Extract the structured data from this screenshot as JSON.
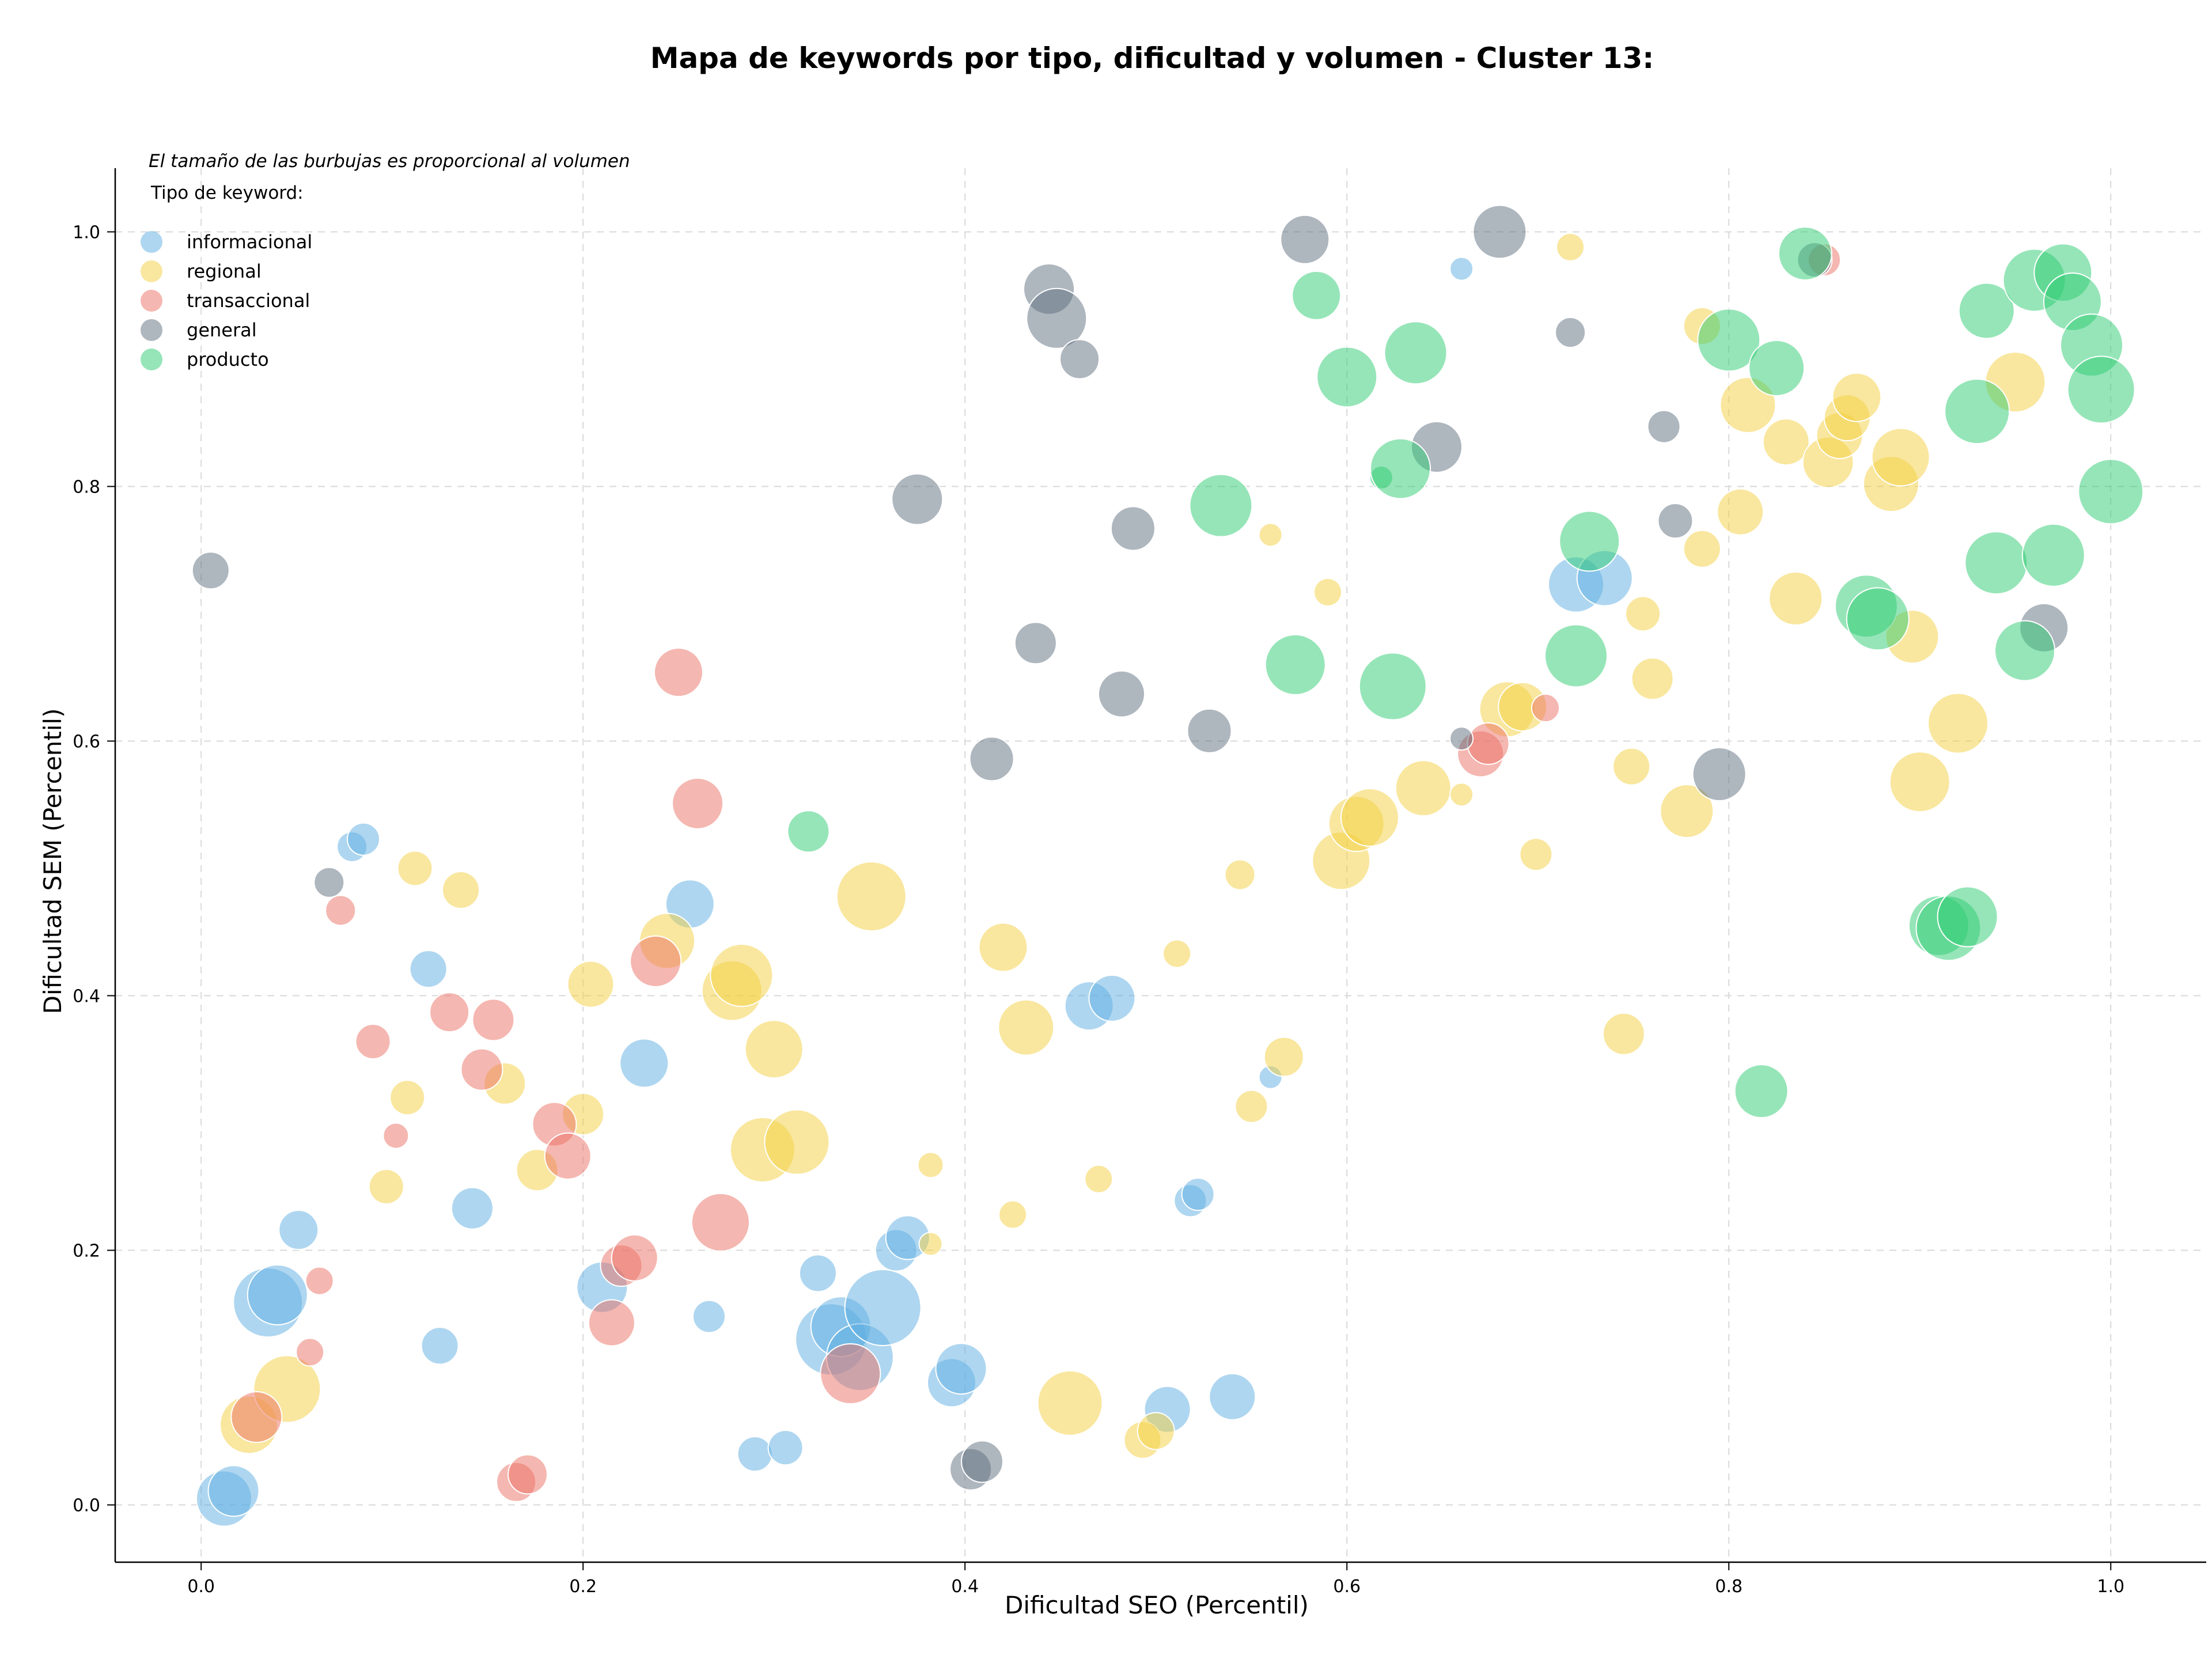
{
  "chart_data": {
    "type": "scatter",
    "title": "Mapa de keywords por tipo, dificultad y volumen - Cluster 13:",
    "xlabel": "Dificultad SEO (Percentil)",
    "ylabel": "Dificultad SEM (Percentil)",
    "xlim": [
      -0.045,
      1.05
    ],
    "ylim": [
      -0.045,
      1.05
    ],
    "xticks": [
      "0.0",
      "0.2",
      "0.4",
      "0.6",
      "0.8",
      "1.0"
    ],
    "yticks": [
      "0.0",
      "0.2",
      "0.4",
      "0.6",
      "0.8",
      "1.0"
    ],
    "grid": true,
    "size_note": "El tamaño de las burbujas es proporcional al volumen",
    "legend_title": "Tipo de keyword:",
    "legend_position": "top-left",
    "series": [
      {
        "name": "informacional",
        "color": "#5DADE2",
        "points": [
          [
            0.012,
            0.005,
            2.4
          ],
          [
            0.017,
            0.011,
            2.2
          ],
          [
            0.035,
            0.159,
            3.0
          ],
          [
            0.04,
            0.165,
            2.6
          ],
          [
            0.051,
            0.216,
            1.7
          ],
          [
            0.079,
            0.517,
            1.3
          ],
          [
            0.085,
            0.523,
            1.4
          ],
          [
            0.119,
            0.421,
            1.6
          ],
          [
            0.125,
            0.125,
            1.6
          ],
          [
            0.142,
            0.233,
            1.8
          ],
          [
            0.21,
            0.171,
            2.2
          ],
          [
            0.232,
            0.347,
            2.1
          ],
          [
            0.256,
            0.472,
            2.1
          ],
          [
            0.266,
            0.148,
            1.4
          ],
          [
            0.29,
            0.04,
            1.5
          ],
          [
            0.306,
            0.045,
            1.5
          ],
          [
            0.323,
            0.182,
            1.6
          ],
          [
            0.33,
            0.13,
            3.1
          ],
          [
            0.335,
            0.14,
            2.6
          ],
          [
            0.345,
            0.116,
            2.9
          ],
          [
            0.357,
            0.155,
            3.3
          ],
          [
            0.364,
            0.2,
            1.8
          ],
          [
            0.37,
            0.21,
            1.9
          ],
          [
            0.393,
            0.096,
            2.1
          ],
          [
            0.398,
            0.107,
            2.2
          ],
          [
            0.465,
            0.392,
            2.1
          ],
          [
            0.477,
            0.398,
            2.0
          ],
          [
            0.506,
            0.075,
            2.0
          ],
          [
            0.518,
            0.239,
            1.4
          ],
          [
            0.522,
            0.244,
            1.4
          ],
          [
            0.54,
            0.085,
            2.0
          ],
          [
            0.56,
            0.336,
            1.0
          ],
          [
            0.66,
            0.971,
            1.0
          ],
          [
            0.72,
            0.723,
            2.4
          ],
          [
            0.735,
            0.728,
            2.4
          ]
        ]
      },
      {
        "name": "regional",
        "color": "#F4D03F",
        "points": [
          [
            0.025,
            0.063,
            2.5
          ],
          [
            0.045,
            0.091,
            2.9
          ],
          [
            0.097,
            0.25,
            1.5
          ],
          [
            0.108,
            0.32,
            1.5
          ],
          [
            0.112,
            0.5,
            1.5
          ],
          [
            0.136,
            0.483,
            1.6
          ],
          [
            0.159,
            0.331,
            1.8
          ],
          [
            0.176,
            0.263,
            1.8
          ],
          [
            0.2,
            0.307,
            1.8
          ],
          [
            0.204,
            0.409,
            2.0
          ],
          [
            0.244,
            0.443,
            2.4
          ],
          [
            0.278,
            0.404,
            2.6
          ],
          [
            0.283,
            0.416,
            2.7
          ],
          [
            0.294,
            0.279,
            2.8
          ],
          [
            0.3,
            0.358,
            2.5
          ],
          [
            0.312,
            0.285,
            2.8
          ],
          [
            0.351,
            0.478,
            3.0
          ],
          [
            0.382,
            0.267,
            1.1
          ],
          [
            0.382,
            0.205,
            1.0
          ],
          [
            0.42,
            0.438,
            2.1
          ],
          [
            0.425,
            0.228,
            1.2
          ],
          [
            0.432,
            0.375,
            2.4
          ],
          [
            0.455,
            0.08,
            2.8
          ],
          [
            0.47,
            0.256,
            1.2
          ],
          [
            0.493,
            0.051,
            1.6
          ],
          [
            0.5,
            0.058,
            1.6
          ],
          [
            0.511,
            0.433,
            1.2
          ],
          [
            0.544,
            0.495,
            1.3
          ],
          [
            0.55,
            0.313,
            1.4
          ],
          [
            0.56,
            0.762,
            1.0
          ],
          [
            0.567,
            0.352,
            1.7
          ],
          [
            0.59,
            0.717,
            1.2
          ],
          [
            0.597,
            0.506,
            2.5
          ],
          [
            0.605,
            0.535,
            2.4
          ],
          [
            0.612,
            0.54,
            2.5
          ],
          [
            0.64,
            0.563,
            2.4
          ],
          [
            0.66,
            0.558,
            1.0
          ],
          [
            0.684,
            0.625,
            2.4
          ],
          [
            0.692,
            0.627,
            2.1
          ],
          [
            0.699,
            0.511,
            1.4
          ],
          [
            0.717,
            0.988,
            1.2
          ],
          [
            0.745,
            0.37,
            1.8
          ],
          [
            0.749,
            0.58,
            1.6
          ],
          [
            0.755,
            0.7,
            1.5
          ],
          [
            0.76,
            0.649,
            1.8
          ],
          [
            0.778,
            0.545,
            2.3
          ],
          [
            0.786,
            0.751,
            1.6
          ],
          [
            0.786,
            0.926,
            1.6
          ],
          [
            0.806,
            0.78,
            2.0
          ],
          [
            0.81,
            0.864,
            2.4
          ],
          [
            0.83,
            0.835,
            2.0
          ],
          [
            0.835,
            0.712,
            2.3
          ],
          [
            0.852,
            0.819,
            2.2
          ],
          [
            0.858,
            0.84,
            2.0
          ],
          [
            0.862,
            0.854,
            2.0
          ],
          [
            0.867,
            0.87,
            2.1
          ],
          [
            0.885,
            0.802,
            2.4
          ],
          [
            0.89,
            0.823,
            2.5
          ],
          [
            0.896,
            0.682,
            2.3
          ],
          [
            0.9,
            0.568,
            2.6
          ],
          [
            0.92,
            0.614,
            2.6
          ],
          [
            0.95,
            0.882,
            2.6
          ]
        ]
      },
      {
        "name": "transaccional",
        "color": "#EC7063",
        "points": [
          [
            0.029,
            0.069,
            2.2
          ],
          [
            0.057,
            0.12,
            1.2
          ],
          [
            0.062,
            0.176,
            1.2
          ],
          [
            0.073,
            0.467,
            1.3
          ],
          [
            0.09,
            0.364,
            1.5
          ],
          [
            0.102,
            0.29,
            1.1
          ],
          [
            0.13,
            0.387,
            1.7
          ],
          [
            0.147,
            0.342,
            1.8
          ],
          [
            0.153,
            0.381,
            1.8
          ],
          [
            0.165,
            0.018,
            1.7
          ],
          [
            0.171,
            0.024,
            1.7
          ],
          [
            0.185,
            0.299,
            1.9
          ],
          [
            0.192,
            0.274,
            2.0
          ],
          [
            0.215,
            0.143,
            2.0
          ],
          [
            0.22,
            0.188,
            1.8
          ],
          [
            0.227,
            0.194,
            2.0
          ],
          [
            0.238,
            0.427,
            2.2
          ],
          [
            0.25,
            0.654,
            2.1
          ],
          [
            0.26,
            0.551,
            2.2
          ],
          [
            0.272,
            0.222,
            2.5
          ],
          [
            0.34,
            0.103,
            2.6
          ],
          [
            0.67,
            0.59,
            2.0
          ],
          [
            0.674,
            0.598,
            1.8
          ],
          [
            0.704,
            0.626,
            1.2
          ],
          [
            0.85,
            0.978,
            1.4
          ]
        ]
      },
      {
        "name": "general",
        "color": "#5D6D7E",
        "points": [
          [
            0.005,
            0.734,
            1.6
          ],
          [
            0.067,
            0.489,
            1.3
          ],
          [
            0.375,
            0.79,
            2.2
          ],
          [
            0.403,
            0.028,
            1.8
          ],
          [
            0.409,
            0.034,
            1.8
          ],
          [
            0.414,
            0.586,
            1.9
          ],
          [
            0.437,
            0.677,
            1.8
          ],
          [
            0.444,
            0.955,
            2.2
          ],
          [
            0.448,
            0.932,
            2.6
          ],
          [
            0.46,
            0.9,
            1.7
          ],
          [
            0.482,
            0.637,
            2.0
          ],
          [
            0.488,
            0.767,
            1.9
          ],
          [
            0.528,
            0.608,
            1.9
          ],
          [
            0.578,
            0.994,
            2.1
          ],
          [
            0.647,
            0.831,
            2.2
          ],
          [
            0.66,
            0.602,
            1.0
          ],
          [
            0.68,
            1.0,
            2.3
          ],
          [
            0.717,
            0.921,
            1.3
          ],
          [
            0.766,
            0.847,
            1.4
          ],
          [
            0.772,
            0.773,
            1.5
          ],
          [
            0.795,
            0.574,
            2.3
          ],
          [
            0.845,
            0.978,
            1.5
          ],
          [
            0.965,
            0.689,
            2.1
          ]
        ]
      },
      {
        "name": "producto",
        "color": "#2ECC71",
        "points": [
          [
            0.318,
            0.529,
            1.8
          ],
          [
            0.534,
            0.785,
            2.7
          ],
          [
            0.573,
            0.66,
            2.6
          ],
          [
            0.584,
            0.95,
            2.1
          ],
          [
            0.6,
            0.886,
            2.6
          ],
          [
            0.618,
            0.807,
            1.0
          ],
          [
            0.624,
            0.643,
            2.9
          ],
          [
            0.628,
            0.814,
            2.6
          ],
          [
            0.636,
            0.905,
            2.7
          ],
          [
            0.72,
            0.667,
            2.7
          ],
          [
            0.727,
            0.757,
            2.6
          ],
          [
            0.8,
            0.915,
            2.7
          ],
          [
            0.817,
            0.325,
            2.3
          ],
          [
            0.825,
            0.893,
            2.4
          ],
          [
            0.84,
            0.983,
            2.3
          ],
          [
            0.872,
            0.706,
            2.7
          ],
          [
            0.878,
            0.696,
            2.7
          ],
          [
            0.91,
            0.455,
            2.6
          ],
          [
            0.915,
            0.453,
            2.8
          ],
          [
            0.925,
            0.462,
            2.6
          ],
          [
            0.93,
            0.859,
            2.8
          ],
          [
            0.935,
            0.938,
            2.4
          ],
          [
            0.94,
            0.74,
            2.7
          ],
          [
            0.955,
            0.671,
            2.6
          ],
          [
            0.96,
            0.962,
            2.7
          ],
          [
            0.97,
            0.746,
            2.7
          ],
          [
            0.975,
            0.968,
            2.5
          ],
          [
            0.98,
            0.945,
            2.5
          ],
          [
            0.99,
            0.911,
            2.7
          ],
          [
            0.995,
            0.876,
            2.9
          ],
          [
            1.0,
            0.796,
            2.8
          ]
        ]
      }
    ]
  }
}
